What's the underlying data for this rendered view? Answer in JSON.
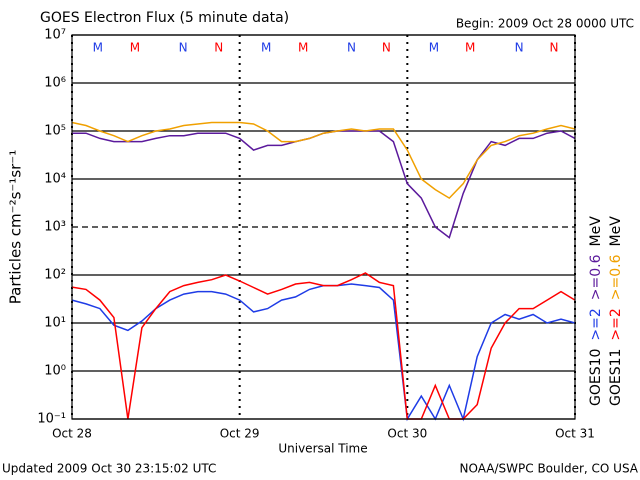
{
  "chart_data": {
    "type": "line",
    "title": "GOES Electron Flux (5 minute data)",
    "subtitle": "Begin: 2009 Oct 28 0000 UTC",
    "xlabel": "Universal Time",
    "ylabel": "Particles cm⁻²s⁻¹sr⁻¹",
    "footer_left": "Updated 2009 Oct 30 23:15:02 UTC",
    "footer_right": "NOAA/SWPC Boulder, CO USA",
    "log_y": true,
    "grid": true,
    "threshold": 1000,
    "xlim": [
      0,
      72
    ],
    "xticks": [
      {
        "value": 0,
        "label": "Oct 28"
      },
      {
        "value": 24,
        "label": "Oct 29"
      },
      {
        "value": 48,
        "label": "Oct 30"
      },
      {
        "value": 72,
        "label": "Oct 31"
      }
    ],
    "ylim": [
      0.1,
      10000000
    ],
    "yticks": [
      {
        "value": 0.1,
        "label": "10⁻¹"
      },
      {
        "value": 1,
        "label": "10⁰"
      },
      {
        "value": 10,
        "label": "10¹"
      },
      {
        "value": 100,
        "label": "10²"
      },
      {
        "value": 1000,
        "label": "10³"
      },
      {
        "value": 10000,
        "label": "10⁴"
      },
      {
        "value": 100000,
        "label": "10⁵"
      },
      {
        "value": 1000000,
        "label": "10⁶"
      },
      {
        "value": 10000000,
        "label": "10⁷"
      }
    ],
    "x": [
      0,
      2,
      4,
      6,
      8,
      10,
      12,
      14,
      16,
      18,
      20,
      22,
      24,
      26,
      28,
      30,
      32,
      34,
      36,
      38,
      40,
      42,
      44,
      46,
      48,
      50,
      52,
      54,
      56,
      58,
      60,
      62,
      64,
      66,
      68,
      70,
      72
    ],
    "legend_groups": [
      {
        "label": "GOES10",
        "unit": "MeV"
      },
      {
        "label": "GOES11",
        "unit": "MeV"
      }
    ],
    "series": [
      {
        "name": ">=2",
        "group": 0,
        "color": "#1f3ce6",
        "values": [
          30,
          25,
          20,
          9,
          7,
          11,
          20,
          30,
          40,
          45,
          45,
          40,
          30,
          17,
          20,
          30,
          35,
          50,
          60,
          60,
          65,
          60,
          55,
          30,
          0.1,
          0.3,
          0.1,
          0.5,
          0.1,
          2,
          10,
          15,
          12,
          15,
          10,
          12,
          10
        ]
      },
      {
        "name": ">=0.6",
        "group": 0,
        "color": "#5b1a9c",
        "values": [
          90000,
          90000,
          70000,
          60000,
          60000,
          60000,
          70000,
          80000,
          80000,
          90000,
          90000,
          90000,
          70000,
          40000,
          50000,
          50000,
          60000,
          70000,
          90000,
          100000,
          100000,
          100000,
          100000,
          60000,
          8000,
          4000,
          1000,
          600,
          5000,
          25000,
          60000,
          50000,
          70000,
          70000,
          90000,
          100000,
          70000
        ]
      },
      {
        "name": ">=2",
        "group": 1,
        "color": "#ff0000",
        "values": [
          56,
          50,
          30,
          13,
          0.1,
          8,
          20,
          45,
          60,
          70,
          80,
          100,
          75,
          55,
          40,
          50,
          65,
          70,
          60,
          60,
          80,
          110,
          70,
          60,
          0.1,
          0.1,
          0.5,
          0.1,
          0.1,
          0.2,
          3,
          10,
          20,
          20,
          30,
          45,
          30
        ]
      },
      {
        "name": ">=0.6",
        "group": 1,
        "color": "#f0a000",
        "values": [
          150000,
          130000,
          100000,
          80000,
          60000,
          80000,
          100000,
          110000,
          130000,
          140000,
          150000,
          150000,
          150000,
          140000,
          100000,
          60000,
          60000,
          70000,
          90000,
          100000,
          110000,
          100000,
          110000,
          110000,
          40000,
          10000,
          6000,
          4000,
          8000,
          25000,
          50000,
          60000,
          80000,
          90000,
          110000,
          130000,
          110000
        ]
      }
    ],
    "annotations": [
      {
        "text": "M",
        "x": 3.7,
        "color": "#1f3ce6"
      },
      {
        "text": "M",
        "x": 9.0,
        "color": "#ff0000"
      },
      {
        "text": "N",
        "x": 15.9,
        "color": "#1f3ce6"
      },
      {
        "text": "N",
        "x": 21.0,
        "color": "#ff0000"
      },
      {
        "text": "M",
        "x": 27.8,
        "color": "#1f3ce6"
      },
      {
        "text": "M",
        "x": 33.1,
        "color": "#ff0000"
      },
      {
        "text": "N",
        "x": 40.0,
        "color": "#1f3ce6"
      },
      {
        "text": "N",
        "x": 45.0,
        "color": "#ff0000"
      },
      {
        "text": "M",
        "x": 51.8,
        "color": "#1f3ce6"
      },
      {
        "text": "M",
        "x": 57.0,
        "color": "#ff0000"
      },
      {
        "text": "N",
        "x": 64.0,
        "color": "#1f3ce6"
      },
      {
        "text": "N",
        "x": 69.0,
        "color": "#ff0000"
      }
    ]
  }
}
